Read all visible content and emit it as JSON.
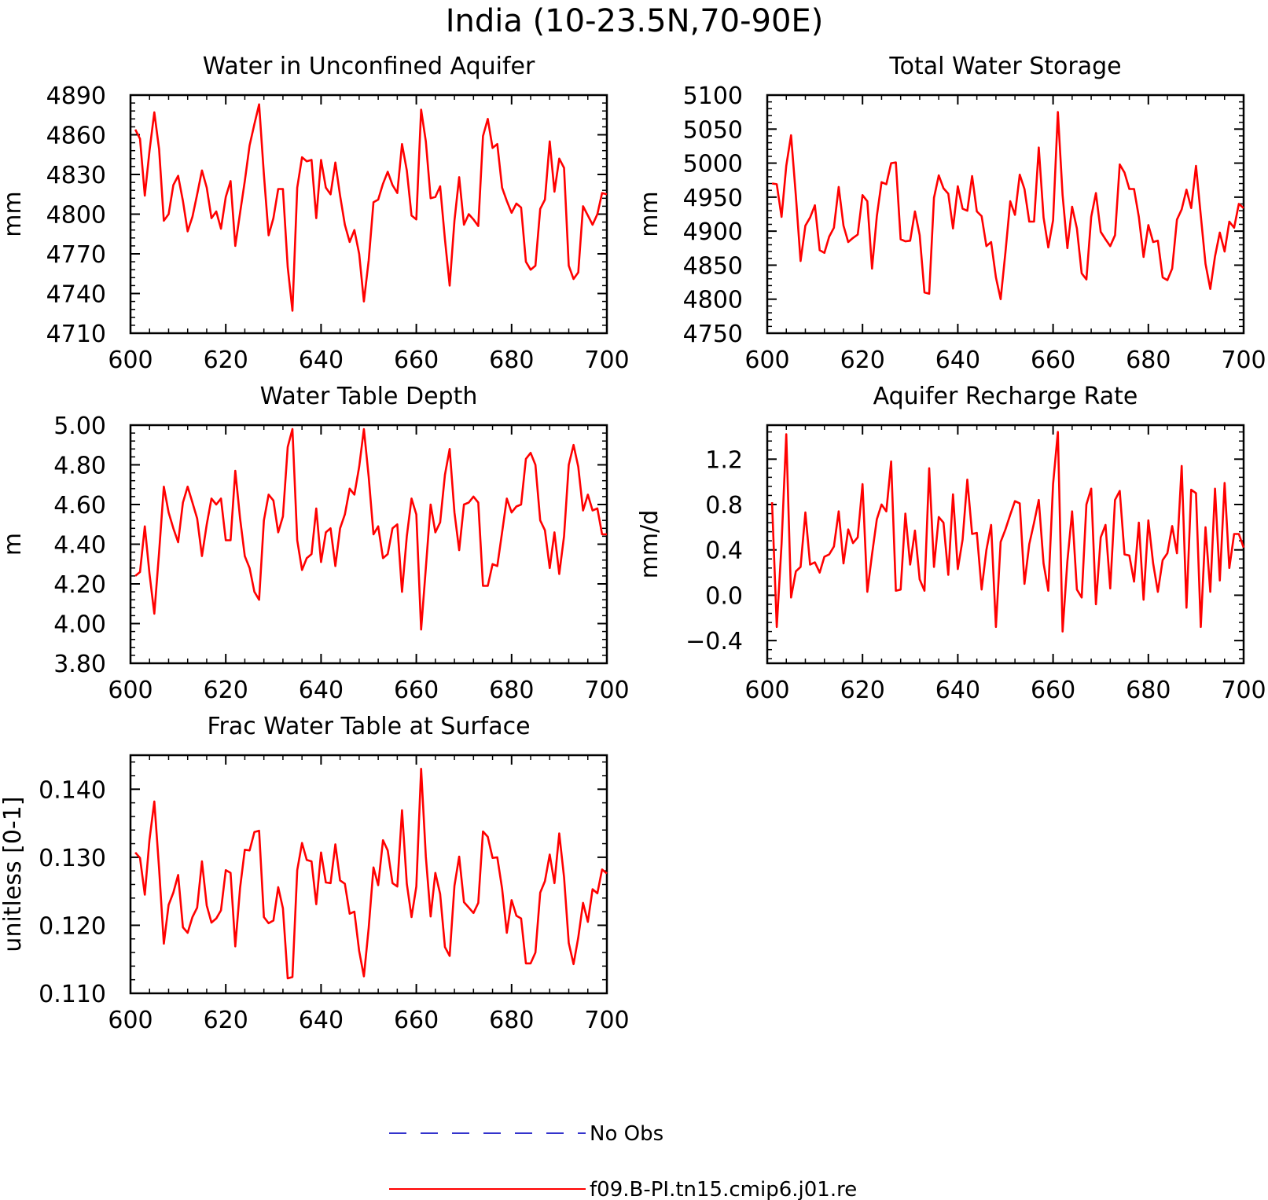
{
  "figure": {
    "title": "India (10-23.5N,70-90E)",
    "colors": {
      "model": "#ff0000",
      "obs": "#3333cc",
      "axes": "#000000"
    }
  },
  "legend": {
    "entries": [
      {
        "label": "No Obs",
        "style": "dashed",
        "color": "#3333cc"
      },
      {
        "label": "f09.B-PI.tn15.cmip6.j01.re",
        "style": "solid",
        "color": "#ff0000"
      }
    ]
  },
  "chart_data": [
    {
      "type": "line",
      "title": "Water in Unconfined Aquifer",
      "ylabel": "mm",
      "xlim": [
        600,
        700
      ],
      "ylim": [
        4710,
        4890
      ],
      "xticks": [
        600,
        620,
        640,
        660,
        680,
        700
      ],
      "xtick_labels": [
        "600",
        "620",
        "640",
        "660",
        "680",
        "700"
      ],
      "yticks": [
        4710,
        4740,
        4770,
        4800,
        4830,
        4860,
        4890
      ],
      "ytick_labels": [
        "4710",
        "4740",
        "4770",
        "4800",
        "4830",
        "4860",
        "4890"
      ],
      "x_start": 601,
      "series": [
        {
          "name": "f09.B-PI.tn15.cmip6.j01.re",
          "values": [
            4864,
            4857,
            4814,
            4848,
            4877,
            4849,
            4795,
            4800,
            4822,
            4829,
            4810,
            4787,
            4798,
            4815,
            4833,
            4820,
            4797,
            4802,
            4789,
            4813,
            4825,
            4776,
            4801,
            4825,
            4852,
            4868,
            4883,
            4830,
            4784,
            4797,
            4819,
            4819,
            4760,
            4727,
            4820,
            4843,
            4840,
            4841,
            4797,
            4841,
            4820,
            4815,
            4839,
            4814,
            4792,
            4779,
            4788,
            4770,
            4734,
            4765,
            4809,
            4811,
            4823,
            4832,
            4822,
            4816,
            4853,
            4833,
            4799,
            4796,
            4879,
            4855,
            4812,
            4813,
            4821,
            4781,
            4746,
            4795,
            4828,
            4792,
            4800,
            4796,
            4791,
            4859,
            4872,
            4850,
            4853,
            4820,
            4810,
            4801,
            4808,
            4805,
            4764,
            4758,
            4761,
            4804,
            4811,
            4855,
            4817,
            4842,
            4835,
            4761,
            4751,
            4756,
            4806,
            4799,
            4792,
            4800,
            4816,
            4815
          ]
        }
      ]
    },
    {
      "type": "line",
      "title": "Total Water Storage",
      "ylabel": "mm",
      "xlim": [
        600,
        700
      ],
      "ylim": [
        4750,
        5100
      ],
      "xticks": [
        600,
        620,
        640,
        660,
        680,
        700
      ],
      "xtick_labels": [
        "600",
        "620",
        "640",
        "660",
        "680",
        "700"
      ],
      "yticks": [
        4750,
        4800,
        4850,
        4900,
        4950,
        5000,
        5050,
        5100
      ],
      "ytick_labels": [
        "4750",
        "4800",
        "4850",
        "4900",
        "4950",
        "5000",
        "5050",
        "5100"
      ],
      "x_start": 601,
      "series": [
        {
          "name": "f09.B-PI.tn15.cmip6.j01.re",
          "values": [
            4970,
            4969,
            4921,
            4996,
            5041,
            4952,
            4856,
            4908,
            4920,
            4938,
            4872,
            4868,
            4892,
            4905,
            4965,
            4908,
            4884,
            4890,
            4895,
            4953,
            4944,
            4845,
            4922,
            4972,
            4969,
            5000,
            5001,
            4888,
            4885,
            4886,
            4929,
            4894,
            4810,
            4808,
            4949,
            4982,
            4963,
            4955,
            4904,
            4966,
            4933,
            4930,
            4981,
            4929,
            4922,
            4878,
            4884,
            4832,
            4800,
            4869,
            4944,
            4924,
            4983,
            4962,
            4914,
            4914,
            5023,
            4920,
            4876,
            4916,
            5075,
            4953,
            4875,
            4936,
            4904,
            4838,
            4829,
            4921,
            4956,
            4899,
            4888,
            4878,
            4894,
            4998,
            4986,
            4962,
            4962,
            4921,
            4862,
            4909,
            4884,
            4886,
            4832,
            4828,
            4845,
            4917,
            4932,
            4961,
            4934,
            4996,
            4923,
            4852,
            4815,
            4863,
            4898,
            4870,
            4914,
            4905,
            4940,
            4934
          ]
        }
      ]
    },
    {
      "type": "line",
      "title": "Water Table Depth",
      "ylabel": "m",
      "xlim": [
        600,
        700
      ],
      "ylim": [
        3.8,
        5.0
      ],
      "xticks": [
        600,
        620,
        640,
        660,
        680,
        700
      ],
      "xtick_labels": [
        "600",
        "620",
        "640",
        "660",
        "680",
        "700"
      ],
      "yticks": [
        3.8,
        4.0,
        4.2,
        4.4,
        4.6,
        4.8,
        5.0
      ],
      "ytick_labels": [
        "3.80",
        "4.00",
        "4.20",
        "4.40",
        "4.60",
        "4.80",
        "5.00"
      ],
      "x_start": 601,
      "series": [
        {
          "name": "f09.B-PI.tn15.cmip6.j01.re",
          "values": [
            4.24,
            4.26,
            4.49,
            4.25,
            4.05,
            4.36,
            4.69,
            4.56,
            4.48,
            4.41,
            4.61,
            4.69,
            4.61,
            4.53,
            4.34,
            4.5,
            4.63,
            4.6,
            4.63,
            4.42,
            4.42,
            4.77,
            4.53,
            4.34,
            4.28,
            4.16,
            4.12,
            4.52,
            4.65,
            4.62,
            4.46,
            4.54,
            4.89,
            4.98,
            4.42,
            4.27,
            4.33,
            4.35,
            4.58,
            4.31,
            4.46,
            4.48,
            4.29,
            4.48,
            4.55,
            4.68,
            4.65,
            4.79,
            4.98,
            4.74,
            4.45,
            4.49,
            4.33,
            4.35,
            4.48,
            4.5,
            4.16,
            4.44,
            4.63,
            4.55,
            3.97,
            4.28,
            4.6,
            4.46,
            4.51,
            4.75,
            4.88,
            4.56,
            4.37,
            4.6,
            4.61,
            4.64,
            4.61,
            4.19,
            4.19,
            4.3,
            4.29,
            4.46,
            4.63,
            4.56,
            4.59,
            4.6,
            4.83,
            4.86,
            4.8,
            4.52,
            4.47,
            4.28,
            4.46,
            4.25,
            4.44,
            4.8,
            4.9,
            4.79,
            4.57,
            4.65,
            4.57,
            4.58,
            4.45,
            4.45
          ]
        }
      ]
    },
    {
      "type": "line",
      "title": "Aquifer Recharge Rate",
      "ylabel": "mm/d",
      "xlim": [
        600,
        700
      ],
      "ylim": [
        -0.6,
        1.5
      ],
      "xticks": [
        600,
        620,
        640,
        660,
        680,
        700
      ],
      "xtick_labels": [
        "600",
        "620",
        "640",
        "660",
        "680",
        "700"
      ],
      "yticks": [
        -0.4,
        0.0,
        0.4,
        0.8,
        1.2
      ],
      "ytick_labels": [
        "−0.4",
        "0.0",
        "0.4",
        "0.8",
        "1.2"
      ],
      "x_start": 601,
      "series": [
        {
          "name": "f09.B-PI.tn15.cmip6.j01.re",
          "values": [
            0.82,
            -0.28,
            0.45,
            1.42,
            -0.02,
            0.21,
            0.25,
            0.73,
            0.27,
            0.29,
            0.2,
            0.34,
            0.36,
            0.43,
            0.74,
            0.28,
            0.58,
            0.46,
            0.51,
            0.98,
            0.03,
            0.36,
            0.67,
            0.8,
            0.74,
            1.18,
            0.04,
            0.05,
            0.72,
            0.27,
            0.57,
            0.14,
            0.04,
            1.12,
            0.25,
            0.69,
            0.64,
            0.18,
            0.89,
            0.23,
            0.49,
            1.02,
            0.54,
            0.55,
            0.05,
            0.4,
            0.62,
            -0.28,
            0.47,
            0.58,
            0.71,
            0.83,
            0.81,
            0.1,
            0.45,
            0.64,
            0.84,
            0.28,
            0.04,
            0.98,
            1.44,
            -0.32,
            0.3,
            0.74,
            0.05,
            -0.02,
            0.8,
            0.94,
            -0.08,
            0.51,
            0.62,
            0.06,
            0.84,
            0.92,
            0.36,
            0.35,
            0.12,
            0.64,
            -0.04,
            0.66,
            0.28,
            0.03,
            0.31,
            0.37,
            0.61,
            0.37,
            1.14,
            -0.11,
            0.93,
            0.9,
            -0.28,
            0.6,
            0.03,
            0.94,
            0.13,
            0.99,
            0.24,
            0.54,
            0.54,
            0.42
          ]
        }
      ]
    },
    {
      "type": "line",
      "title": "Frac Water Table at Surface",
      "ylabel": "unitless [0-1]",
      "xlim": [
        600,
        700
      ],
      "ylim": [
        0.11,
        0.145
      ],
      "xticks": [
        600,
        620,
        640,
        660,
        680,
        700
      ],
      "xtick_labels": [
        "600",
        "620",
        "640",
        "660",
        "680",
        "700"
      ],
      "yticks": [
        0.11,
        0.12,
        0.13,
        0.14
      ],
      "ytick_labels": [
        "0.110",
        "0.120",
        "0.130",
        "0.140"
      ],
      "x_start": 601,
      "series": [
        {
          "name": "f09.B-PI.tn15.cmip6.j01.re",
          "values": [
            0.1307,
            0.1299,
            0.1245,
            0.1326,
            0.1382,
            0.1283,
            0.1173,
            0.123,
            0.1248,
            0.1274,
            0.1197,
            0.1189,
            0.1212,
            0.1226,
            0.1294,
            0.1229,
            0.1204,
            0.121,
            0.1222,
            0.1281,
            0.1277,
            0.1169,
            0.1255,
            0.1311,
            0.131,
            0.1337,
            0.1339,
            0.1212,
            0.1203,
            0.1207,
            0.1256,
            0.1225,
            0.1122,
            0.1124,
            0.1281,
            0.1321,
            0.1296,
            0.1294,
            0.1231,
            0.1307,
            0.1263,
            0.1262,
            0.1319,
            0.1266,
            0.1261,
            0.1217,
            0.122,
            0.1162,
            0.1125,
            0.1196,
            0.1285,
            0.1259,
            0.1325,
            0.131,
            0.1262,
            0.1257,
            0.1369,
            0.1261,
            0.1212,
            0.1257,
            0.143,
            0.1301,
            0.1213,
            0.1277,
            0.1246,
            0.1168,
            0.1155,
            0.1258,
            0.1301,
            0.1234,
            0.1226,
            0.1218,
            0.1233,
            0.1338,
            0.133,
            0.1299,
            0.13,
            0.1254,
            0.1189,
            0.1237,
            0.1214,
            0.121,
            0.1144,
            0.1144,
            0.116,
            0.1248,
            0.1265,
            0.1304,
            0.1262,
            0.1335,
            0.1271,
            0.1174,
            0.1143,
            0.1182,
            0.1233,
            0.1205,
            0.1253,
            0.1247,
            0.1282,
            0.1276
          ]
        }
      ]
    }
  ]
}
